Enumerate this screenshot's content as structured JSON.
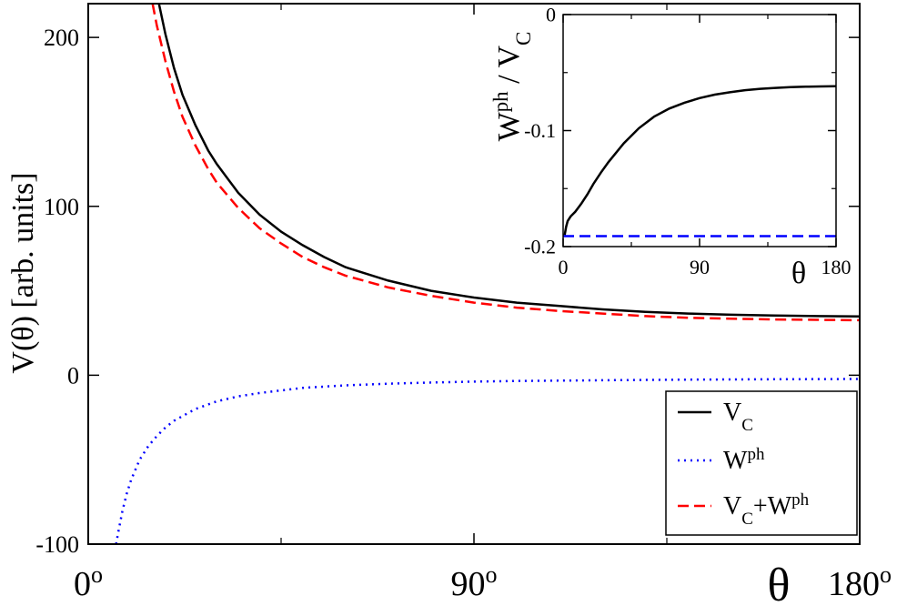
{
  "chart_data": [
    {
      "type": "line",
      "role": "main",
      "xlabel": "θ",
      "ylabel": "V(θ) [arb. units]",
      "xlim": [
        0,
        180
      ],
      "ylim": [
        -100,
        220
      ],
      "x_ticks": [
        {
          "value": 0,
          "base": "0",
          "sup": "o"
        },
        {
          "value": 90,
          "base": "90",
          "sup": "o"
        },
        {
          "value": 180,
          "base": "180",
          "sup": "o"
        }
      ],
      "x_minor_ticks": [
        45,
        135
      ],
      "y_ticks": [
        {
          "value": -100,
          "label": "-100"
        },
        {
          "value": 0,
          "label": "0"
        },
        {
          "value": 100,
          "label": "100"
        },
        {
          "value": 200,
          "label": "200"
        }
      ],
      "legend": {
        "position": "bottom-right",
        "entries": [
          {
            "series": "vc",
            "parts": [
              [
                "V",
                ""
              ],
              [
                "C",
                "sub"
              ]
            ]
          },
          {
            "series": "wph",
            "parts": [
              [
                "W",
                ""
              ],
              [
                "ph",
                "sup"
              ]
            ]
          },
          {
            "series": "sum",
            "parts": [
              [
                "V",
                ""
              ],
              [
                "C",
                "sub"
              ],
              [
                "+W",
                ""
              ],
              [
                "ph",
                "sup"
              ]
            ]
          }
        ]
      },
      "series": [
        {
          "id": "vc",
          "color": "#000000",
          "style": "solid",
          "points": [
            [
              16.5,
              220
            ],
            [
              18,
              202
            ],
            [
              20,
              182
            ],
            [
              22,
              166
            ],
            [
              25,
              148
            ],
            [
              28,
              133
            ],
            [
              30,
              125
            ],
            [
              35,
              108
            ],
            [
              40,
              95
            ],
            [
              45,
              85
            ],
            [
              50,
              77
            ],
            [
              55,
              70
            ],
            [
              60,
              64
            ],
            [
              70,
              56
            ],
            [
              80,
              50
            ],
            [
              90,
              46
            ],
            [
              100,
              43
            ],
            [
              110,
              41
            ],
            [
              120,
              39
            ],
            [
              130,
              37.5
            ],
            [
              140,
              36.5
            ],
            [
              150,
              35.8
            ],
            [
              160,
              35.3
            ],
            [
              170,
              35
            ],
            [
              180,
              34.8
            ]
          ]
        },
        {
          "id": "wph",
          "color": "#0000ff",
          "style": "dotted",
          "points": [
            [
              6.5,
              -100
            ],
            [
              7,
              -93
            ],
            [
              8,
              -80
            ],
            [
              9,
              -70
            ],
            [
              10,
              -62
            ],
            [
              12,
              -50
            ],
            [
              14,
              -42
            ],
            [
              16,
              -36
            ],
            [
              18,
              -31
            ],
            [
              20,
              -27
            ],
            [
              25,
              -20
            ],
            [
              30,
              -15.5
            ],
            [
              35,
              -12.5
            ],
            [
              40,
              -10.5
            ],
            [
              50,
              -7.5
            ],
            [
              60,
              -6
            ],
            [
              70,
              -5
            ],
            [
              80,
              -4.3
            ],
            [
              90,
              -3.8
            ],
            [
              100,
              -3.4
            ],
            [
              120,
              -3
            ],
            [
              140,
              -2.6
            ],
            [
              160,
              -2.4
            ],
            [
              180,
              -2.2
            ]
          ]
        },
        {
          "id": "sum",
          "color": "#ff0000",
          "style": "dashed",
          "points": [
            [
              15,
              220
            ],
            [
              16,
              207
            ],
            [
              18,
              186
            ],
            [
              20,
              168
            ],
            [
              22,
              153
            ],
            [
              25,
              136
            ],
            [
              28,
              122
            ],
            [
              30,
              114
            ],
            [
              35,
              99
            ],
            [
              40,
              87
            ],
            [
              45,
              78
            ],
            [
              50,
              70
            ],
            [
              55,
              64
            ],
            [
              60,
              59
            ],
            [
              70,
              52
            ],
            [
              80,
              47
            ],
            [
              90,
              43
            ],
            [
              100,
              40
            ],
            [
              110,
              38
            ],
            [
              120,
              36.5
            ],
            [
              130,
              35
            ],
            [
              140,
              34
            ],
            [
              150,
              33.5
            ],
            [
              160,
              33
            ],
            [
              170,
              32.8
            ],
            [
              180,
              32.6
            ]
          ]
        }
      ]
    },
    {
      "type": "line",
      "role": "inset",
      "position": "top-right",
      "xlabel": "θ",
      "ylabel_parts": [
        [
          "W",
          ""
        ],
        [
          "ph",
          "sup"
        ],
        [
          " / V",
          ""
        ],
        [
          "C",
          "sub"
        ]
      ],
      "xlim": [
        0,
        180
      ],
      "ylim": [
        -0.2,
        0
      ],
      "x_ticks": [
        {
          "value": 0,
          "label": "0"
        },
        {
          "value": 90,
          "label": "90"
        },
        {
          "value": 180,
          "label": "180"
        }
      ],
      "x_minor_ticks": [
        45,
        135
      ],
      "y_ticks": [
        {
          "value": -0.2,
          "label": "-0.2"
        },
        {
          "value": -0.1,
          "label": "-0.1"
        },
        {
          "value": 0,
          "label": "0"
        }
      ],
      "y_minor_ticks": [
        -0.15,
        -0.05
      ],
      "series": [
        {
          "id": "ratio",
          "color": "#000000",
          "style": "solid",
          "points": [
            [
              1,
              -0.19
            ],
            [
              2,
              -0.183
            ],
            [
              3,
              -0.178
            ],
            [
              5,
              -0.174
            ],
            [
              8,
              -0.17
            ],
            [
              12,
              -0.163
            ],
            [
              16,
              -0.155
            ],
            [
              20,
              -0.146
            ],
            [
              25,
              -0.136
            ],
            [
              30,
              -0.127
            ],
            [
              40,
              -0.111
            ],
            [
              50,
              -0.098
            ],
            [
              60,
              -0.088
            ],
            [
              70,
              -0.081
            ],
            [
              80,
              -0.076
            ],
            [
              90,
              -0.072
            ],
            [
              100,
              -0.069
            ],
            [
              110,
              -0.067
            ],
            [
              120,
              -0.0652
            ],
            [
              130,
              -0.064
            ],
            [
              140,
              -0.0632
            ],
            [
              150,
              -0.0625
            ],
            [
              160,
              -0.0622
            ],
            [
              170,
              -0.062
            ],
            [
              180,
              -0.0618
            ]
          ]
        },
        {
          "id": "const",
          "color": "#0000ff",
          "style": "dashed",
          "points": [
            [
              0,
              -0.191
            ],
            [
              180,
              -0.191
            ]
          ]
        }
      ]
    }
  ]
}
